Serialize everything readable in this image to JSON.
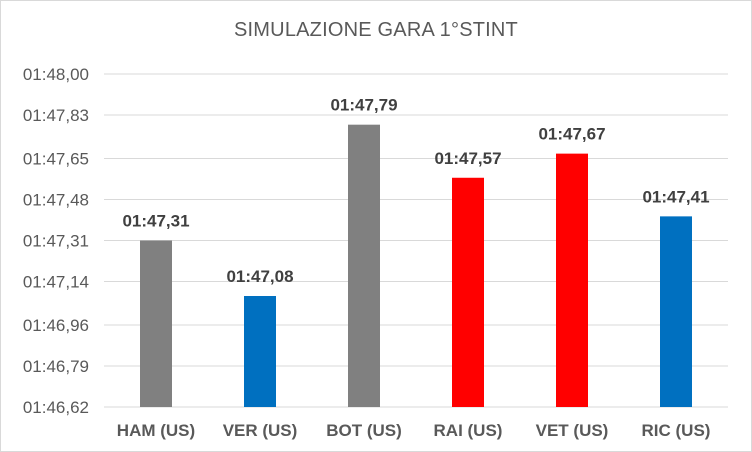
{
  "chart_data": {
    "type": "bar",
    "title": "SIMULAZIONE GARA 1°STINT",
    "xlabel": "",
    "ylabel": "",
    "categories": [
      "HAM (US)",
      "VER (US)",
      "BOT (US)",
      "RAI (US)",
      "VET (US)",
      "RIC (US)"
    ],
    "values_seconds": [
      107.31,
      107.08,
      107.79,
      107.57,
      107.67,
      107.41
    ],
    "data_labels": [
      "01:47,31",
      "01:47,08",
      "01:47,79",
      "01:47,57",
      "01:47,67",
      "01:47,41"
    ],
    "bar_colors": [
      "#808080",
      "#0070c0",
      "#808080",
      "#ff0000",
      "#ff0000",
      "#0070c0"
    ],
    "ylim_seconds": [
      106.62,
      108.0
    ],
    "y_ticks_seconds": [
      106.62,
      106.79,
      106.96,
      107.14,
      107.31,
      107.48,
      107.65,
      107.83,
      108.0
    ],
    "y_tick_labels": [
      "01:46,62",
      "01:46,79",
      "01:46,96",
      "01:47,14",
      "01:47,31",
      "01:47,48",
      "01:47,65",
      "01:47,83",
      "01:48,00"
    ],
    "grid": true,
    "legend": "none"
  },
  "colors": {
    "gridline": "#d9d9d9",
    "axis_text": "#595959",
    "label_text": "#404040"
  }
}
